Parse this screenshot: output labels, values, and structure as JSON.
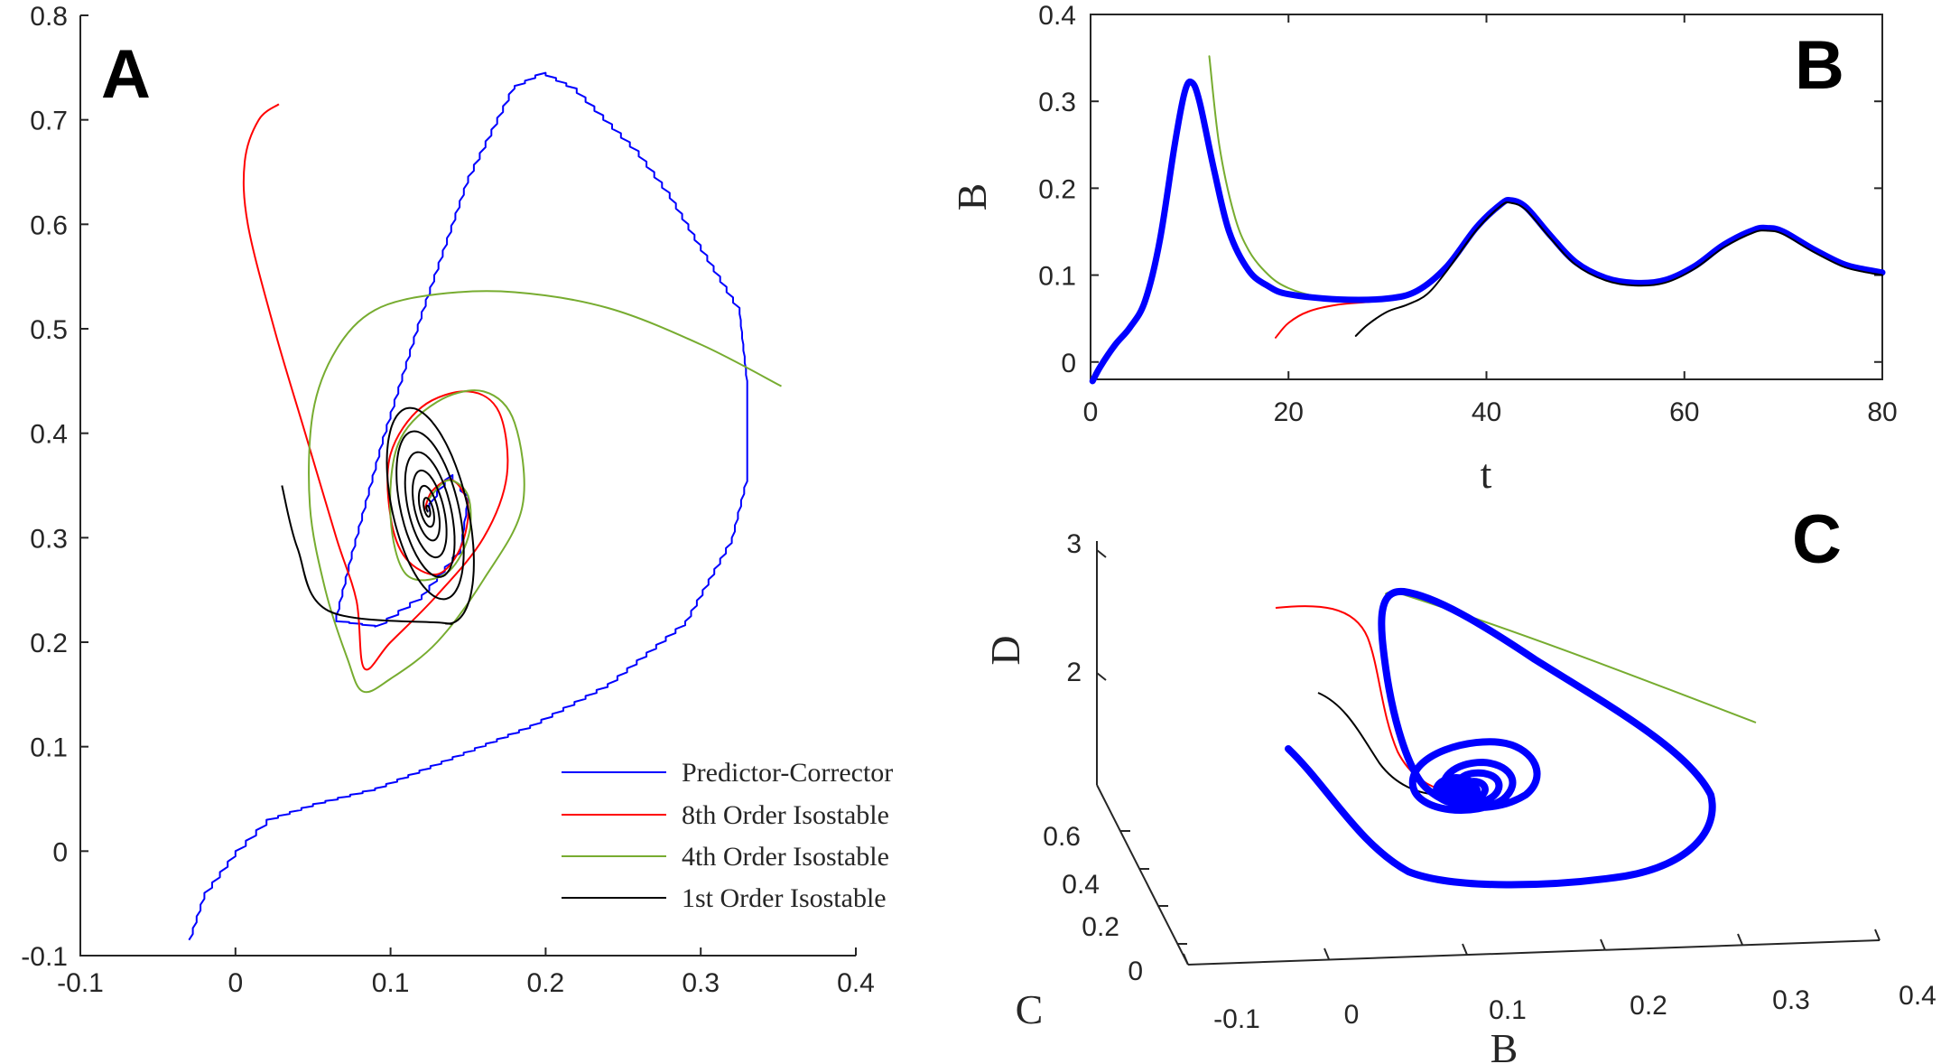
{
  "chart_data": [
    {
      "panel": "A",
      "type": "line",
      "title": "",
      "xlabel": "",
      "ylabel": "",
      "xlim": [
        -0.1,
        0.4
      ],
      "ylim": [
        -0.1,
        0.8
      ],
      "xticks": [
        "-0.1",
        "0",
        "0.1",
        "0.2",
        "0.3",
        "0.4"
      ],
      "yticks": [
        "-0.1",
        "0",
        "0.1",
        "0.2",
        "0.3",
        "0.4",
        "0.5",
        "0.6",
        "0.7",
        "0.8"
      ],
      "legend_position": "bottom-right",
      "series": [
        {
          "name": "Predictor-Corrector",
          "color": "#0000ff",
          "style": "staircase",
          "points": [
            [
              -0.03,
              -0.085
            ],
            [
              -0.02,
              -0.04
            ],
            [
              0.0,
              0.0
            ],
            [
              0.02,
              0.03
            ],
            [
              0.05,
              0.045
            ],
            [
              0.09,
              0.06
            ],
            [
              0.14,
              0.09
            ],
            [
              0.19,
              0.12
            ],
            [
              0.24,
              0.16
            ],
            [
              0.29,
              0.22
            ],
            [
              0.32,
              0.3
            ],
            [
              0.33,
              0.36
            ],
            [
              0.33,
              0.45
            ],
            [
              0.325,
              0.52
            ],
            [
              0.3,
              0.58
            ],
            [
              0.28,
              0.63
            ],
            [
              0.26,
              0.67
            ],
            [
              0.22,
              0.73
            ],
            [
              0.2,
              0.745
            ],
            [
              0.18,
              0.73
            ],
            [
              0.15,
              0.64
            ],
            [
              0.12,
              0.51
            ],
            [
              0.095,
              0.39
            ],
            [
              0.075,
              0.28
            ],
            [
              0.065,
              0.22
            ],
            [
              0.09,
              0.215
            ],
            [
              0.12,
              0.245
            ],
            [
              0.145,
              0.29
            ],
            [
              0.15,
              0.34
            ],
            [
              0.14,
              0.36
            ],
            [
              0.13,
              0.34
            ],
            [
              0.125,
              0.325
            ]
          ]
        },
        {
          "name": "8th Order Isostable",
          "color": "#ff0000",
          "style": "smooth",
          "points": [
            [
              0.028,
              0.715
            ],
            [
              0.015,
              0.7
            ],
            [
              0.006,
              0.66
            ],
            [
              0.008,
              0.6
            ],
            [
              0.025,
              0.5
            ],
            [
              0.045,
              0.4
            ],
            [
              0.065,
              0.3
            ],
            [
              0.078,
              0.24
            ],
            [
              0.083,
              0.175
            ],
            [
              0.1,
              0.2
            ],
            [
              0.13,
              0.245
            ],
            [
              0.16,
              0.3
            ],
            [
              0.175,
              0.36
            ],
            [
              0.17,
              0.42
            ],
            [
              0.15,
              0.44
            ],
            [
              0.12,
              0.425
            ],
            [
              0.1,
              0.38
            ],
            [
              0.1,
              0.32
            ],
            [
              0.11,
              0.28
            ],
            [
              0.13,
              0.265
            ],
            [
              0.145,
              0.29
            ],
            [
              0.15,
              0.33
            ],
            [
              0.14,
              0.355
            ],
            [
              0.127,
              0.345
            ],
            [
              0.122,
              0.327
            ]
          ]
        },
        {
          "name": "4th Order Isostable",
          "color": "#77ac30",
          "style": "smooth",
          "points": [
            [
              0.352,
              0.445
            ],
            [
              0.3,
              0.485
            ],
            [
              0.24,
              0.52
            ],
            [
              0.18,
              0.535
            ],
            [
              0.13,
              0.533
            ],
            [
              0.09,
              0.518
            ],
            [
              0.065,
              0.48
            ],
            [
              0.05,
              0.42
            ],
            [
              0.048,
              0.33
            ],
            [
              0.058,
              0.25
            ],
            [
              0.072,
              0.185
            ],
            [
              0.082,
              0.153
            ],
            [
              0.1,
              0.165
            ],
            [
              0.13,
              0.2
            ],
            [
              0.16,
              0.26
            ],
            [
              0.185,
              0.33
            ],
            [
              0.18,
              0.41
            ],
            [
              0.16,
              0.44
            ],
            [
              0.13,
              0.43
            ],
            [
              0.105,
              0.39
            ],
            [
              0.1,
              0.32
            ],
            [
              0.11,
              0.265
            ],
            [
              0.135,
              0.265
            ],
            [
              0.15,
              0.3
            ],
            [
              0.15,
              0.34
            ],
            [
              0.137,
              0.355
            ],
            [
              0.124,
              0.336
            ]
          ]
        },
        {
          "name": "1st Order Isostable",
          "color": "#000000",
          "style": "spiral",
          "start": [
            0.03,
            0.35
          ],
          "center": [
            0.124,
            0.327
          ],
          "first_loop_bounds": {
            "x": [
              0.075,
              0.178
            ],
            "y": [
              0.2,
              0.452
            ]
          }
        }
      ]
    },
    {
      "panel": "B",
      "type": "line",
      "title": "",
      "xlabel": "t",
      "ylabel": "B",
      "xlim": [
        0,
        80
      ],
      "ylim": [
        -0.02,
        0.4
      ],
      "xticks": [
        "0",
        "20",
        "40",
        "60",
        "80"
      ],
      "yticks": [
        "0",
        "0.1",
        "0.2",
        "0.3",
        "0.4"
      ],
      "series": [
        {
          "name": "Predictor-Corrector",
          "color": "#0000ff",
          "points": [
            [
              0.2,
              -0.022
            ],
            [
              1,
              -0.005
            ],
            [
              2.5,
              0.02
            ],
            [
              4,
              0.04
            ],
            [
              5.5,
              0.07
            ],
            [
              7,
              0.14
            ],
            [
              8.5,
              0.25
            ],
            [
              9.5,
              0.31
            ],
            [
              10.2,
              0.322
            ],
            [
              11,
              0.3
            ],
            [
              12.5,
              0.22
            ],
            [
              14,
              0.15
            ],
            [
              16,
              0.105
            ],
            [
              18,
              0.087
            ],
            [
              20,
              0.078
            ],
            [
              25,
              0.072
            ],
            [
              30,
              0.073
            ],
            [
              33,
              0.082
            ],
            [
              36,
              0.11
            ],
            [
              39,
              0.155
            ],
            [
              41.5,
              0.182
            ],
            [
              42.5,
              0.186
            ],
            [
              44,
              0.178
            ],
            [
              46.5,
              0.145
            ],
            [
              49,
              0.115
            ],
            [
              52,
              0.097
            ],
            [
              55,
              0.091
            ],
            [
              58,
              0.094
            ],
            [
              61,
              0.11
            ],
            [
              64,
              0.135
            ],
            [
              67,
              0.152
            ],
            [
              68.5,
              0.154
            ],
            [
              70,
              0.15
            ],
            [
              73,
              0.13
            ],
            [
              76,
              0.113
            ],
            [
              78,
              0.107
            ],
            [
              80,
              0.103
            ]
          ]
        },
        {
          "name": "8th Order Isostable",
          "color": "#ff0000",
          "points": [
            [
              18.7,
              0.028
            ],
            [
              20,
              0.045
            ],
            [
              22,
              0.058
            ],
            [
              25,
              0.066
            ],
            [
              28,
              0.069
            ],
            [
              31,
              0.072
            ]
          ]
        },
        {
          "name": "4th Order Isostable",
          "color": "#77ac30",
          "points": [
            [
              12,
              0.352
            ],
            [
              13,
              0.25
            ],
            [
              14.5,
              0.17
            ],
            [
              16,
              0.128
            ],
            [
              18,
              0.1
            ],
            [
              20,
              0.085
            ],
            [
              23,
              0.075
            ],
            [
              26,
              0.072
            ]
          ]
        },
        {
          "name": "1st Order Isostable",
          "color": "#000000",
          "points": [
            [
              26.8,
              0.03
            ],
            [
              28,
              0.043
            ],
            [
              30,
              0.058
            ],
            [
              32,
              0.066
            ],
            [
              34,
              0.078
            ],
            [
              36,
              0.105
            ],
            [
              39,
              0.152
            ],
            [
              41.5,
              0.18
            ],
            [
              42.5,
              0.183
            ],
            [
              44,
              0.175
            ],
            [
              46.5,
              0.142
            ],
            [
              49,
              0.112
            ],
            [
              52,
              0.094
            ],
            [
              55,
              0.088
            ],
            [
              58,
              0.091
            ],
            [
              61,
              0.107
            ],
            [
              64,
              0.132
            ],
            [
              67,
              0.149
            ],
            [
              68.5,
              0.151
            ],
            [
              70,
              0.147
            ],
            [
              73,
              0.127
            ],
            [
              76,
              0.11
            ],
            [
              78,
              0.104
            ],
            [
              80,
              0.1
            ]
          ]
        }
      ]
    },
    {
      "panel": "C",
      "type": "line",
      "title": "",
      "xlabel": "B",
      "ylabel": "C",
      "zlabel": "D",
      "view": "3d",
      "b_ticks": [
        "-0.1",
        "0",
        "0.1",
        "0.2",
        "0.3",
        "0.4"
      ],
      "c_ticks": [
        "0",
        "0.2",
        "0.4",
        "0.6"
      ],
      "d_ticks": [
        "2",
        "3"
      ],
      "series": [
        {
          "name": "Predictor-Corrector",
          "color": "#0000ff"
        },
        {
          "name": "8th Order Isostable",
          "color": "#ff0000"
        },
        {
          "name": "4th Order Isostable",
          "color": "#77ac30"
        },
        {
          "name": "1st Order Isostable",
          "color": "#000000"
        }
      ]
    }
  ],
  "panel_letters": {
    "a": "A",
    "b": "B",
    "c": "C"
  }
}
